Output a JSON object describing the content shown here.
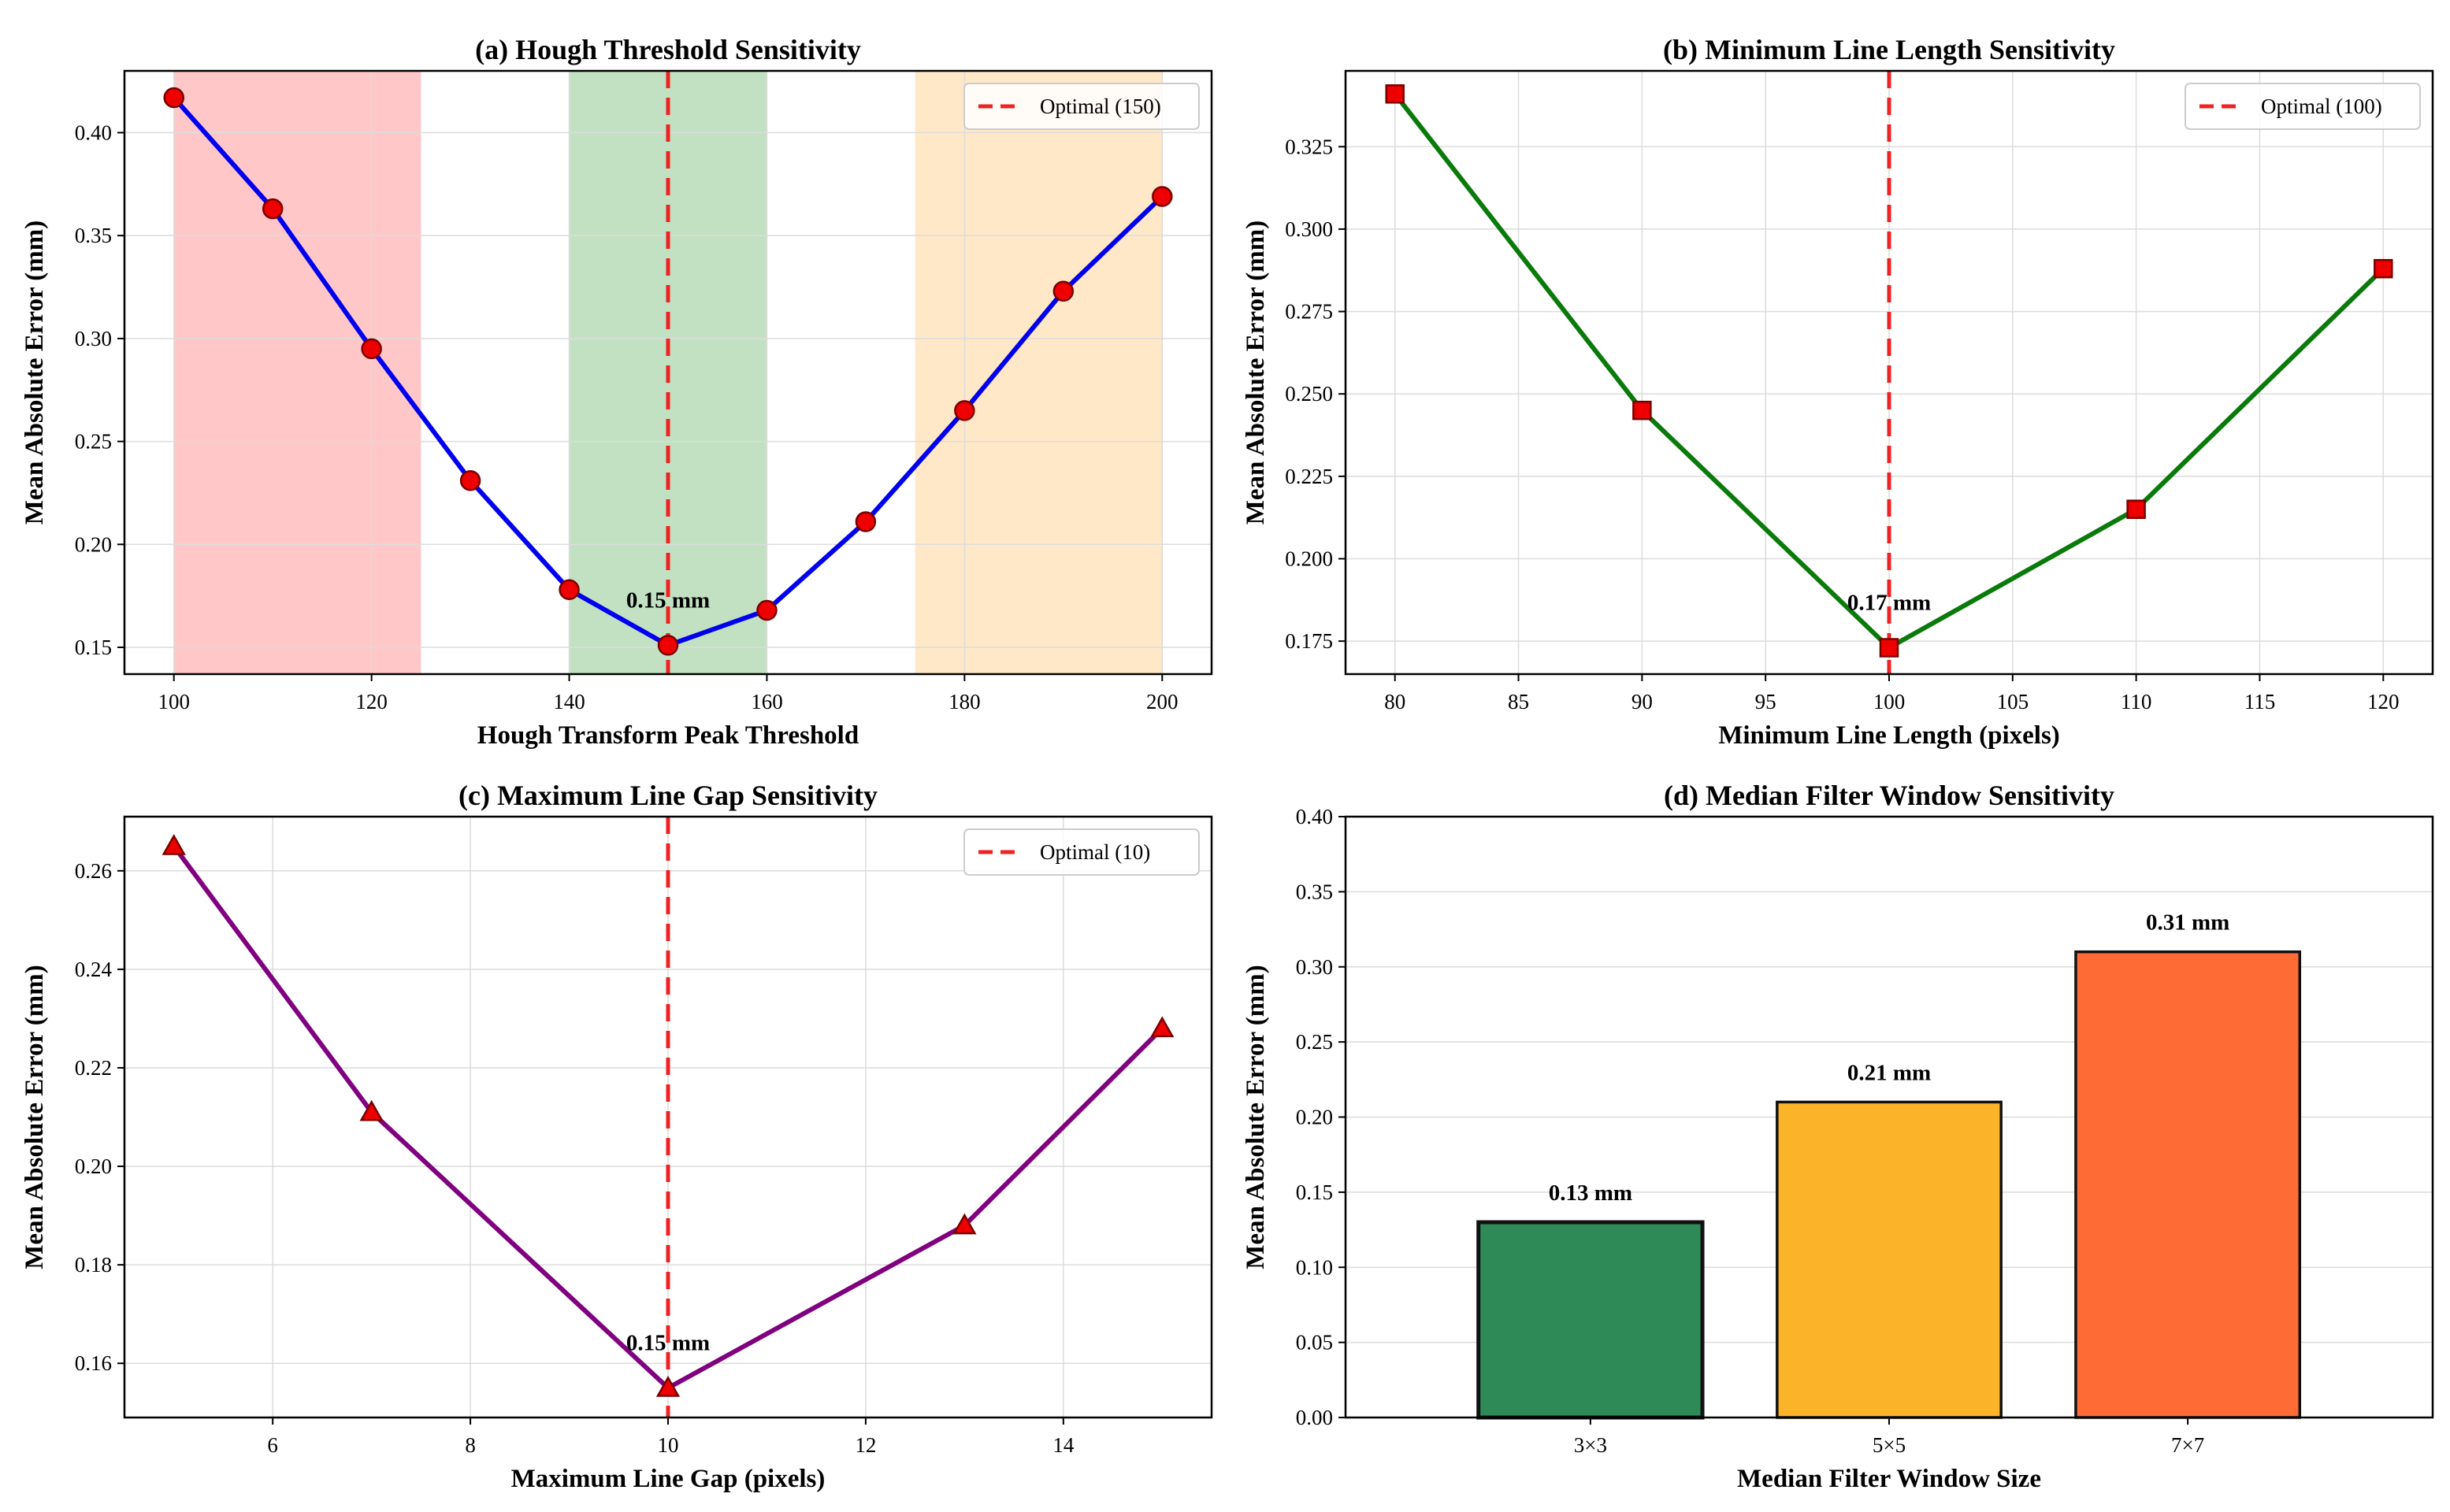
{
  "figure": {
    "background": "#ffffff"
  },
  "chart_data": [
    {
      "id": "a",
      "type": "line",
      "title": "(a) Hough Threshold Sensitivity",
      "xlabel": "Hough Transform Peak Threshold",
      "ylabel": "Mean Absolute Error (mm)",
      "xlim": [
        95,
        205
      ],
      "ylim": [
        0.137,
        0.43
      ],
      "xticks": [
        100,
        120,
        140,
        160,
        180,
        200
      ],
      "yticks": [
        0.15,
        0.2,
        0.25,
        0.3,
        0.35,
        0.4
      ],
      "x": [
        100,
        110,
        120,
        130,
        140,
        150,
        160,
        170,
        180,
        190,
        200
      ],
      "y": [
        0.417,
        0.363,
        0.295,
        0.231,
        0.178,
        0.151,
        0.168,
        0.211,
        0.265,
        0.323,
        0.369
      ],
      "line_color": "#0000ee",
      "marker": "circle",
      "marker_color": "#ee0000",
      "bands": [
        {
          "from": 100,
          "to": 125,
          "color": "#ff9999"
        },
        {
          "from": 140,
          "to": 160,
          "color": "#8fc98f"
        },
        {
          "from": 175,
          "to": 200,
          "color": "#ffd699"
        }
      ],
      "optimal": {
        "x": 150,
        "legend": "Optimal (150)"
      },
      "annotation": {
        "text": "0.15 mm",
        "x": 150,
        "y": 0.151
      },
      "grid": true,
      "legend_position": "upper right"
    },
    {
      "id": "b",
      "type": "line",
      "title": "(b) Minimum Line Length Sensitivity",
      "xlabel": "Minimum Line Length (pixels)",
      "ylabel": "Mean Absolute Error (mm)",
      "xlim": [
        78,
        122
      ],
      "ylim": [
        0.165,
        0.348
      ],
      "xticks": [
        80,
        85,
        90,
        95,
        100,
        105,
        110,
        115,
        120
      ],
      "yticks": [
        0.175,
        0.2,
        0.225,
        0.25,
        0.275,
        0.3,
        0.325
      ],
      "ytick_labels": [
        "0.175",
        "0.200",
        "0.225",
        "0.250",
        "0.275",
        "0.300",
        "0.325"
      ],
      "x": [
        80,
        90,
        100,
        110,
        120
      ],
      "y": [
        0.341,
        0.245,
        0.173,
        0.215,
        0.288
      ],
      "line_color": "#0a7a0a",
      "marker": "square",
      "marker_color": "#ee0000",
      "optimal": {
        "x": 100,
        "legend": "Optimal (100)"
      },
      "annotation": {
        "text": "0.17 mm",
        "x": 100,
        "y": 0.173
      },
      "grid": true,
      "legend_position": "upper right"
    },
    {
      "id": "c",
      "type": "line",
      "title": "(c) Maximum Line Gap Sensitivity",
      "xlabel": "Maximum Line Gap (pixels)",
      "ylabel": "Mean Absolute Error (mm)",
      "xlim": [
        4.5,
        15.5
      ],
      "ylim": [
        0.149,
        0.271
      ],
      "xticks": [
        6,
        8,
        10,
        12,
        14
      ],
      "yticks": [
        0.16,
        0.18,
        0.2,
        0.22,
        0.24,
        0.26
      ],
      "x": [
        5,
        7,
        10,
        13,
        15
      ],
      "y": [
        0.265,
        0.211,
        0.155,
        0.188,
        0.228
      ],
      "line_color": "#800080",
      "marker": "triangle",
      "marker_color": "#ee0000",
      "optimal": {
        "x": 10,
        "legend": "Optimal (10)"
      },
      "annotation": {
        "text": "0.15 mm",
        "x": 10,
        "y": 0.155
      },
      "grid": true,
      "legend_position": "upper right"
    },
    {
      "id": "d",
      "type": "bar",
      "title": "(d) Median Filter Window Sensitivity",
      "xlabel": "Median Filter Window Size",
      "ylabel": "Mean Absolute Error (mm)",
      "categories": [
        "3×3",
        "5×5",
        "7×7"
      ],
      "values": [
        0.13,
        0.21,
        0.31
      ],
      "value_labels": [
        "0.13 mm",
        "0.21 mm",
        "0.31 mm"
      ],
      "colors": [
        "#2e8b57",
        "#fbb42a",
        "#ff6b35"
      ],
      "ylim": [
        0,
        0.4
      ],
      "yticks": [
        0.0,
        0.05,
        0.1,
        0.15,
        0.2,
        0.25,
        0.3,
        0.35,
        0.4
      ],
      "grid": true
    }
  ]
}
